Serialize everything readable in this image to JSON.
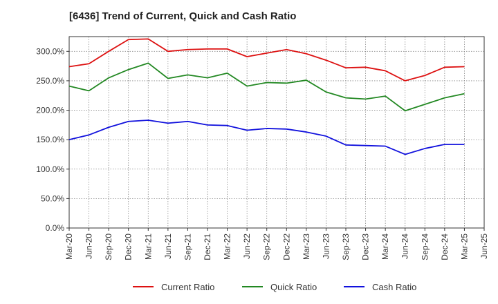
{
  "chart_data": {
    "type": "line",
    "title": "[6436]  Trend of Current, Quick and Cash Ratio",
    "xlabel": "",
    "ylabel": "",
    "ylim": [
      0,
      325
    ],
    "yticks": [
      "0.0%",
      "50.0%",
      "100.0%",
      "150.0%",
      "200.0%",
      "250.0%",
      "300.0%"
    ],
    "ytick_values": [
      0,
      50,
      100,
      150,
      200,
      250,
      300
    ],
    "x_tick_labels": [
      "Mar-20",
      "Jun-20",
      "Sep-20",
      "Dec-20",
      "Mar-21",
      "Jun-21",
      "Sep-21",
      "Dec-21",
      "Mar-22",
      "Jun-22",
      "Sep-22",
      "Dec-22",
      "Mar-23",
      "Jun-23",
      "Sep-23",
      "Dec-23",
      "Mar-24",
      "Jun-24",
      "Sep-24",
      "Dec-24",
      "Mar-25",
      "Jun-25"
    ],
    "grid": true,
    "legend_position": "bottom",
    "series": [
      {
        "name": "Current Ratio",
        "color": "#dd1111",
        "values": [
          274,
          279,
          300,
          320,
          321,
          300,
          303,
          304,
          304,
          291,
          297,
          303,
          296,
          285,
          272,
          273,
          267,
          250,
          259,
          273,
          274
        ]
      },
      {
        "name": "Quick Ratio",
        "color": "#228822",
        "values": [
          241,
          233,
          255,
          269,
          280,
          254,
          260,
          255,
          263,
          241,
          247,
          246,
          251,
          231,
          221,
          219,
          224,
          199,
          210,
          221,
          228
        ]
      },
      {
        "name": "Cash Ratio",
        "color": "#1111dd",
        "values": [
          150,
          158,
          171,
          181,
          183,
          178,
          181,
          175,
          174,
          166,
          169,
          168,
          163,
          156,
          141,
          140,
          139,
          125,
          135,
          142,
          142
        ]
      }
    ]
  }
}
